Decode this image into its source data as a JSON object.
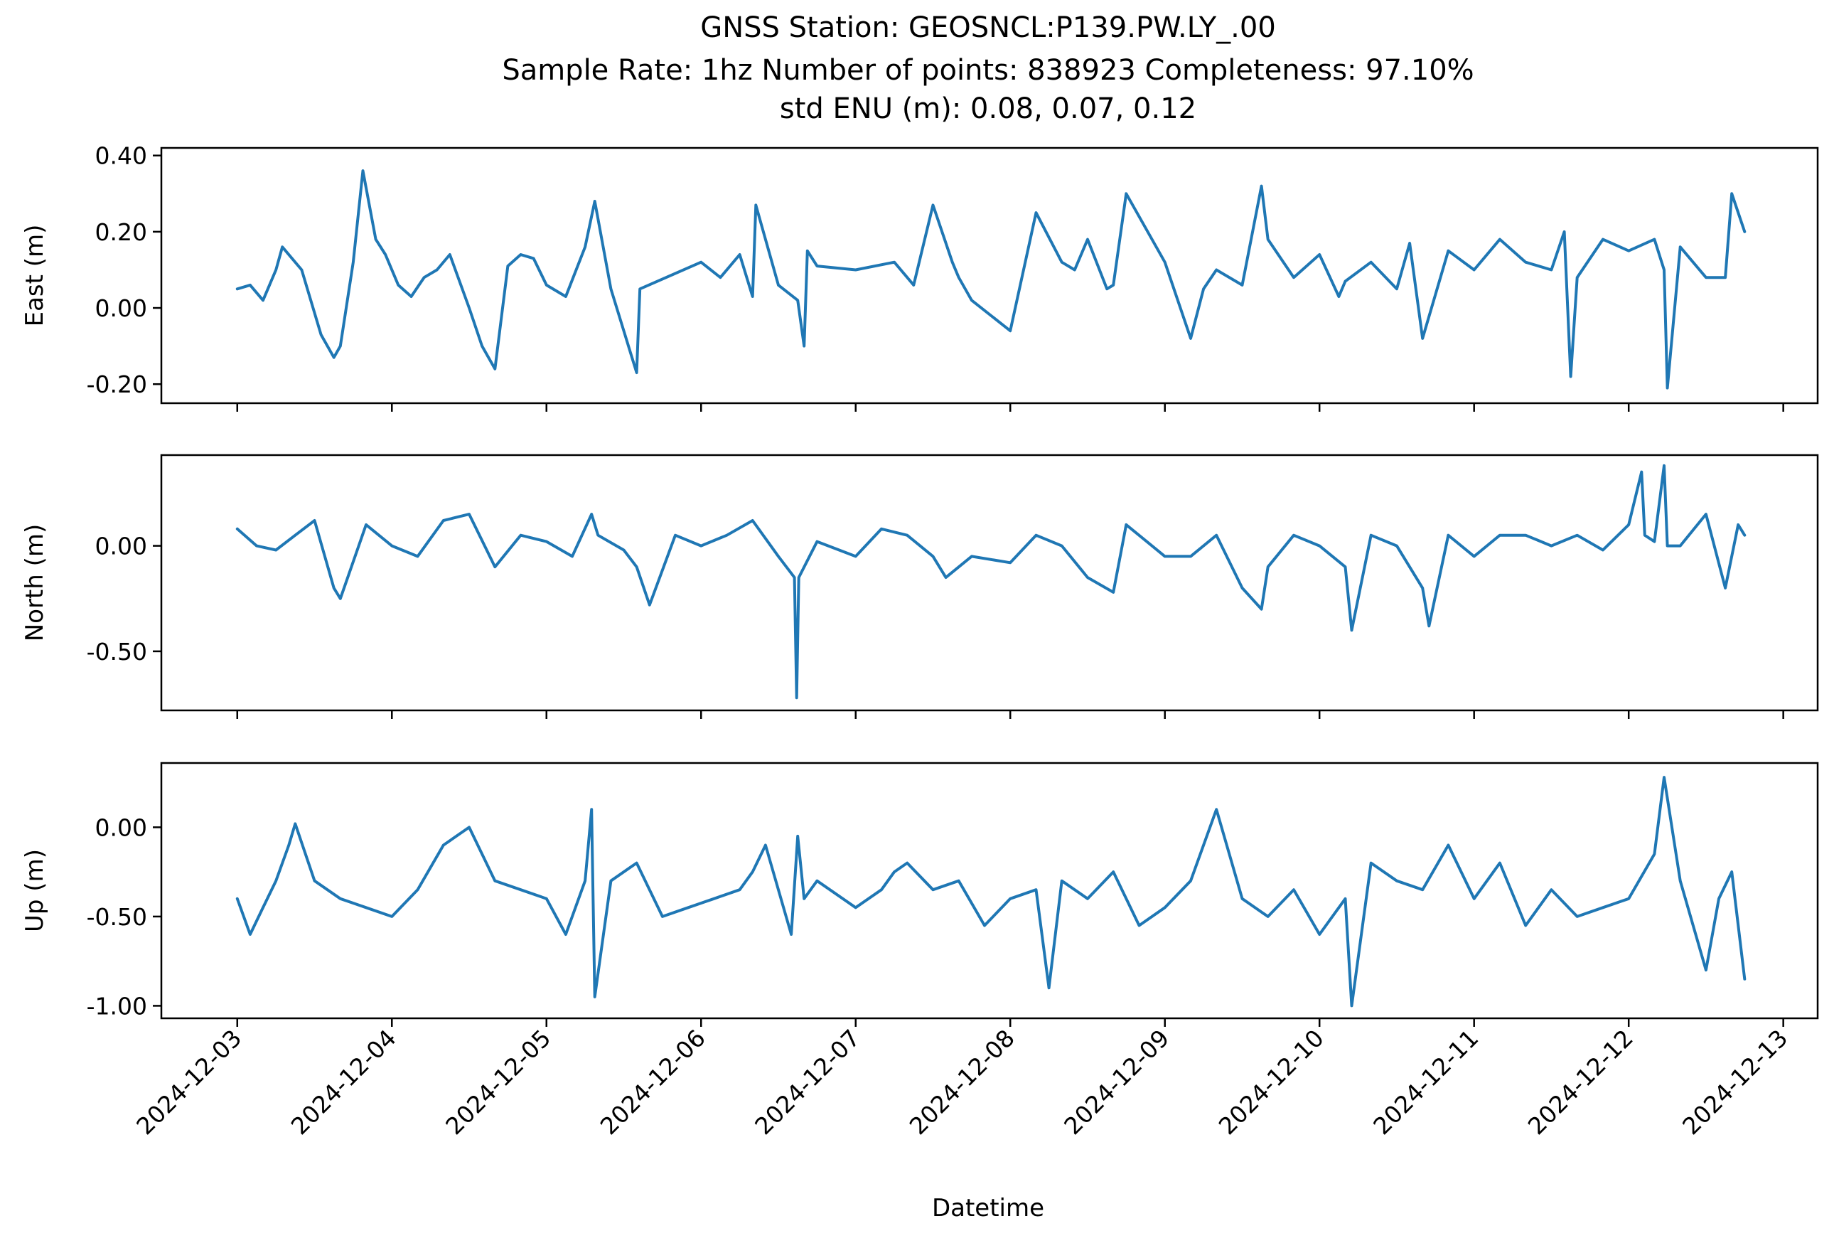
{
  "figure": {
    "title_lines": [
      "GNSS Station: GEOSNCL:P139.PW.LY_.00",
      "Sample Rate: 1hz   Number of points: 838923    Completeness:  97.10%",
      "std ENU (m):  0.08, 0.07, 0.12"
    ],
    "xlabel": "Datetime",
    "line_color": "#1f77b4"
  },
  "chart_data": [
    {
      "type": "line",
      "ylabel": "East (m)",
      "xlim": [
        "2024-12-02T12:13",
        "2024-12-13T05:20"
      ],
      "ylim": [
        -0.25,
        0.42
      ],
      "yticks": [
        -0.2,
        0.0,
        0.2,
        0.4
      ],
      "ytick_labels": [
        "-0.20",
        "0.00",
        "0.20",
        "0.40"
      ],
      "xticks": [
        "2024-12-03",
        "2024-12-04",
        "2024-12-05",
        "2024-12-06",
        "2024-12-07",
        "2024-12-08",
        "2024-12-09",
        "2024-12-10",
        "2024-12-11",
        "2024-12-12",
        "2024-12-13"
      ],
      "show_xtick_labels": false,
      "series": [
        {
          "x": [
            "2024-12-03T00:00",
            "2024-12-03T02:00",
            "2024-12-03T04:00",
            "2024-12-03T06:00",
            "2024-12-03T07:00",
            "2024-12-03T10:00",
            "2024-12-03T13:00",
            "2024-12-03T15:00",
            "2024-12-03T16:00",
            "2024-12-03T18:00",
            "2024-12-03T19:30",
            "2024-12-03T21:30",
            "2024-12-03T23:00",
            "2024-12-04T01:00",
            "2024-12-04T03:00",
            "2024-12-04T05:00",
            "2024-12-04T07:00",
            "2024-12-04T09:00",
            "2024-12-04T12:00",
            "2024-12-04T14:00",
            "2024-12-04T16:00",
            "2024-12-04T18:00",
            "2024-12-04T20:00",
            "2024-12-04T22:00",
            "2024-12-05T00:00",
            "2024-12-05T03:00",
            "2024-12-05T06:00",
            "2024-12-05T07:30",
            "2024-12-05T10:00",
            "2024-12-05T12:00",
            "2024-12-05T14:00",
            "2024-12-05T14:30",
            "2024-12-06T00:00",
            "2024-12-06T03:00",
            "2024-12-06T06:00",
            "2024-12-06T08:00",
            "2024-12-06T08:30",
            "2024-12-06T12:00",
            "2024-12-06T15:00",
            "2024-12-06T16:00",
            "2024-12-06T16:30",
            "2024-12-06T18:00",
            "2024-12-07T00:00",
            "2024-12-07T06:00",
            "2024-12-07T09:00",
            "2024-12-07T12:00",
            "2024-12-07T15:00",
            "2024-12-07T16:00",
            "2024-12-07T18:00",
            "2024-12-08T00:00",
            "2024-12-08T04:00",
            "2024-12-08T08:00",
            "2024-12-08T10:00",
            "2024-12-08T12:00",
            "2024-12-08T15:00",
            "2024-12-08T16:00",
            "2024-12-08T18:00",
            "2024-12-09T00:00",
            "2024-12-09T04:00",
            "2024-12-09T06:00",
            "2024-12-09T08:00",
            "2024-12-09T12:00",
            "2024-12-09T15:00",
            "2024-12-09T16:00",
            "2024-12-09T20:00",
            "2024-12-10T00:00",
            "2024-12-10T03:00",
            "2024-12-10T04:00",
            "2024-12-10T08:00",
            "2024-12-10T12:00",
            "2024-12-10T14:00",
            "2024-12-10T16:00",
            "2024-12-10T20:00",
            "2024-12-11T00:00",
            "2024-12-11T04:00",
            "2024-12-11T08:00",
            "2024-12-11T12:00",
            "2024-12-11T14:00",
            "2024-12-11T15:00",
            "2024-12-11T16:00",
            "2024-12-11T20:00",
            "2024-12-12T00:00",
            "2024-12-12T04:00",
            "2024-12-12T05:30",
            "2024-12-12T06:00",
            "2024-12-12T08:00",
            "2024-12-12T12:00",
            "2024-12-12T15:00",
            "2024-12-12T16:00",
            "2024-12-12T18:00"
          ],
          "y": [
            0.05,
            0.06,
            0.02,
            0.1,
            0.16,
            0.1,
            -0.07,
            -0.13,
            -0.1,
            0.12,
            0.36,
            0.18,
            0.14,
            0.06,
            0.03,
            0.08,
            0.1,
            0.14,
            0.0,
            -0.1,
            -0.16,
            0.11,
            0.14,
            0.13,
            0.06,
            0.03,
            0.16,
            0.28,
            0.05,
            -0.06,
            -0.17,
            0.05,
            0.12,
            0.08,
            0.14,
            0.03,
            0.27,
            0.06,
            0.02,
            -0.1,
            0.15,
            0.11,
            0.1,
            0.12,
            0.06,
            0.27,
            0.12,
            0.08,
            0.02,
            -0.06,
            0.25,
            0.12,
            0.1,
            0.18,
            0.05,
            0.06,
            0.3,
            0.12,
            -0.08,
            0.05,
            0.1,
            0.06,
            0.32,
            0.18,
            0.08,
            0.14,
            0.03,
            0.07,
            0.12,
            0.05,
            0.17,
            -0.08,
            0.15,
            0.1,
            0.18,
            0.12,
            0.1,
            0.2,
            -0.18,
            0.08,
            0.18,
            0.15,
            0.18,
            0.1,
            -0.21,
            0.16,
            0.08,
            0.08,
            0.3,
            0.2
          ]
        }
      ]
    },
    {
      "type": "line",
      "ylabel": "North (m)",
      "xlim": [
        "2024-12-02T12:13",
        "2024-12-13T05:20"
      ],
      "ylim": [
        -0.78,
        0.43
      ],
      "yticks": [
        -0.5,
        0.0
      ],
      "ytick_labels": [
        "-0.50",
        "0.00"
      ],
      "xticks": [
        "2024-12-03",
        "2024-12-04",
        "2024-12-05",
        "2024-12-06",
        "2024-12-07",
        "2024-12-08",
        "2024-12-09",
        "2024-12-10",
        "2024-12-11",
        "2024-12-12",
        "2024-12-13"
      ],
      "show_xtick_labels": false,
      "series": [
        {
          "x": [
            "2024-12-03T00:00",
            "2024-12-03T03:00",
            "2024-12-03T06:00",
            "2024-12-03T09:00",
            "2024-12-03T12:00",
            "2024-12-03T15:00",
            "2024-12-03T16:00",
            "2024-12-03T20:00",
            "2024-12-04T00:00",
            "2024-12-04T04:00",
            "2024-12-04T08:00",
            "2024-12-04T12:00",
            "2024-12-04T16:00",
            "2024-12-04T20:00",
            "2024-12-05T00:00",
            "2024-12-05T04:00",
            "2024-12-05T07:00",
            "2024-12-05T08:00",
            "2024-12-05T12:00",
            "2024-12-05T14:00",
            "2024-12-05T16:00",
            "2024-12-05T20:00",
            "2024-12-06T00:00",
            "2024-12-06T04:00",
            "2024-12-06T08:00",
            "2024-12-06T12:00",
            "2024-12-06T14:30",
            "2024-12-06T14:50",
            "2024-12-06T15:10",
            "2024-12-06T18:00",
            "2024-12-07T00:00",
            "2024-12-07T04:00",
            "2024-12-07T08:00",
            "2024-12-07T12:00",
            "2024-12-07T14:00",
            "2024-12-07T18:00",
            "2024-12-08T00:00",
            "2024-12-08T04:00",
            "2024-12-08T08:00",
            "2024-12-08T12:00",
            "2024-12-08T16:00",
            "2024-12-08T18:00",
            "2024-12-09T00:00",
            "2024-12-09T04:00",
            "2024-12-09T08:00",
            "2024-12-09T12:00",
            "2024-12-09T15:00",
            "2024-12-09T16:00",
            "2024-12-09T20:00",
            "2024-12-10T00:00",
            "2024-12-10T04:00",
            "2024-12-10T05:00",
            "2024-12-10T08:00",
            "2024-12-10T12:00",
            "2024-12-10T16:00",
            "2024-12-10T17:00",
            "2024-12-10T20:00",
            "2024-12-11T00:00",
            "2024-12-11T04:00",
            "2024-12-11T08:00",
            "2024-12-11T12:00",
            "2024-12-11T16:00",
            "2024-12-11T20:00",
            "2024-12-12T00:00",
            "2024-12-12T02:00",
            "2024-12-12T02:30",
            "2024-12-12T04:00",
            "2024-12-12T05:30",
            "2024-12-12T06:00",
            "2024-12-12T08:00",
            "2024-12-12T12:00",
            "2024-12-12T15:00",
            "2024-12-12T17:00",
            "2024-12-12T18:00"
          ],
          "y": [
            0.08,
            0.0,
            -0.02,
            0.05,
            0.12,
            -0.2,
            -0.25,
            0.1,
            0.0,
            -0.05,
            0.12,
            0.15,
            -0.1,
            0.05,
            0.02,
            -0.05,
            0.15,
            0.05,
            -0.02,
            -0.1,
            -0.28,
            0.05,
            0.0,
            0.05,
            0.12,
            -0.05,
            -0.15,
            -0.72,
            -0.15,
            0.02,
            -0.05,
            0.08,
            0.05,
            -0.05,
            -0.15,
            -0.05,
            -0.08,
            0.05,
            0.0,
            -0.15,
            -0.22,
            0.1,
            -0.05,
            -0.05,
            0.05,
            -0.2,
            -0.3,
            -0.1,
            0.05,
            0.0,
            -0.1,
            -0.4,
            0.05,
            0.0,
            -0.2,
            -0.38,
            0.05,
            -0.05,
            0.05,
            0.05,
            0.0,
            0.05,
            -0.02,
            0.1,
            0.35,
            0.05,
            0.02,
            0.38,
            0.0,
            0.0,
            0.15,
            -0.2,
            0.1,
            0.05
          ]
        }
      ]
    },
    {
      "type": "line",
      "ylabel": "Up (m)",
      "xlim": [
        "2024-12-02T12:13",
        "2024-12-13T05:20"
      ],
      "ylim": [
        -1.07,
        0.36
      ],
      "yticks": [
        -1.0,
        -0.5,
        0.0
      ],
      "ytick_labels": [
        "-1.00",
        "-0.50",
        "0.00"
      ],
      "xticks": [
        "2024-12-03",
        "2024-12-04",
        "2024-12-05",
        "2024-12-06",
        "2024-12-07",
        "2024-12-08",
        "2024-12-09",
        "2024-12-10",
        "2024-12-11",
        "2024-12-12",
        "2024-12-13"
      ],
      "xtick_labels": [
        "2024-12-03",
        "2024-12-04",
        "2024-12-05",
        "2024-12-06",
        "2024-12-07",
        "2024-12-08",
        "2024-12-09",
        "2024-12-10",
        "2024-12-11",
        "2024-12-12",
        "2024-12-13"
      ],
      "show_xtick_labels": true,
      "series": [
        {
          "x": [
            "2024-12-03T00:00",
            "2024-12-03T02:00",
            "2024-12-03T04:00",
            "2024-12-03T06:00",
            "2024-12-03T08:00",
            "2024-12-03T09:00",
            "2024-12-03T12:00",
            "2024-12-03T16:00",
            "2024-12-03T20:00",
            "2024-12-04T00:00",
            "2024-12-04T04:00",
            "2024-12-04T08:00",
            "2024-12-04T12:00",
            "2024-12-04T16:00",
            "2024-12-04T20:00",
            "2024-12-05T00:00",
            "2024-12-05T03:00",
            "2024-12-05T06:00",
            "2024-12-05T07:00",
            "2024-12-05T07:30",
            "2024-12-05T10:00",
            "2024-12-05T14:00",
            "2024-12-05T18:00",
            "2024-12-05T22:00",
            "2024-12-06T02:00",
            "2024-12-06T06:00",
            "2024-12-06T08:00",
            "2024-12-06T10:00",
            "2024-12-06T14:00",
            "2024-12-06T15:00",
            "2024-12-06T16:00",
            "2024-12-06T18:00",
            "2024-12-07T00:00",
            "2024-12-07T04:00",
            "2024-12-07T06:00",
            "2024-12-07T08:00",
            "2024-12-07T12:00",
            "2024-12-07T16:00",
            "2024-12-07T20:00",
            "2024-12-08T00:00",
            "2024-12-08T04:00",
            "2024-12-08T06:00",
            "2024-12-08T08:00",
            "2024-12-08T12:00",
            "2024-12-08T16:00",
            "2024-12-08T20:00",
            "2024-12-09T00:00",
            "2024-12-09T04:00",
            "2024-12-09T08:00",
            "2024-12-09T12:00",
            "2024-12-09T16:00",
            "2024-12-09T20:00",
            "2024-12-10T00:00",
            "2024-12-10T04:00",
            "2024-12-10T05:00",
            "2024-12-10T08:00",
            "2024-12-10T12:00",
            "2024-12-10T16:00",
            "2024-12-10T20:00",
            "2024-12-11T00:00",
            "2024-12-11T04:00",
            "2024-12-11T08:00",
            "2024-12-11T12:00",
            "2024-12-11T16:00",
            "2024-12-11T20:00",
            "2024-12-12T00:00",
            "2024-12-12T04:00",
            "2024-12-12T05:30",
            "2024-12-12T08:00",
            "2024-12-12T12:00",
            "2024-12-12T14:00",
            "2024-12-12T16:00",
            "2024-12-12T18:00"
          ],
          "y": [
            -0.4,
            -0.6,
            -0.45,
            -0.3,
            -0.1,
            0.02,
            -0.3,
            -0.4,
            -0.45,
            -0.5,
            -0.35,
            -0.1,
            0.0,
            -0.3,
            -0.35,
            -0.4,
            -0.6,
            -0.3,
            0.1,
            -0.95,
            -0.3,
            -0.2,
            -0.5,
            -0.45,
            -0.4,
            -0.35,
            -0.25,
            -0.1,
            -0.6,
            -0.05,
            -0.4,
            -0.3,
            -0.45,
            -0.35,
            -0.25,
            -0.2,
            -0.35,
            -0.3,
            -0.55,
            -0.4,
            -0.35,
            -0.9,
            -0.3,
            -0.4,
            -0.25,
            -0.55,
            -0.45,
            -0.3,
            0.1,
            -0.4,
            -0.5,
            -0.35,
            -0.6,
            -0.4,
            -1.0,
            -0.2,
            -0.3,
            -0.35,
            -0.1,
            -0.4,
            -0.2,
            -0.55,
            -0.35,
            -0.5,
            -0.45,
            -0.4,
            -0.15,
            0.28,
            -0.3,
            -0.8,
            -0.4,
            -0.25,
            -0.85
          ]
        }
      ]
    }
  ]
}
